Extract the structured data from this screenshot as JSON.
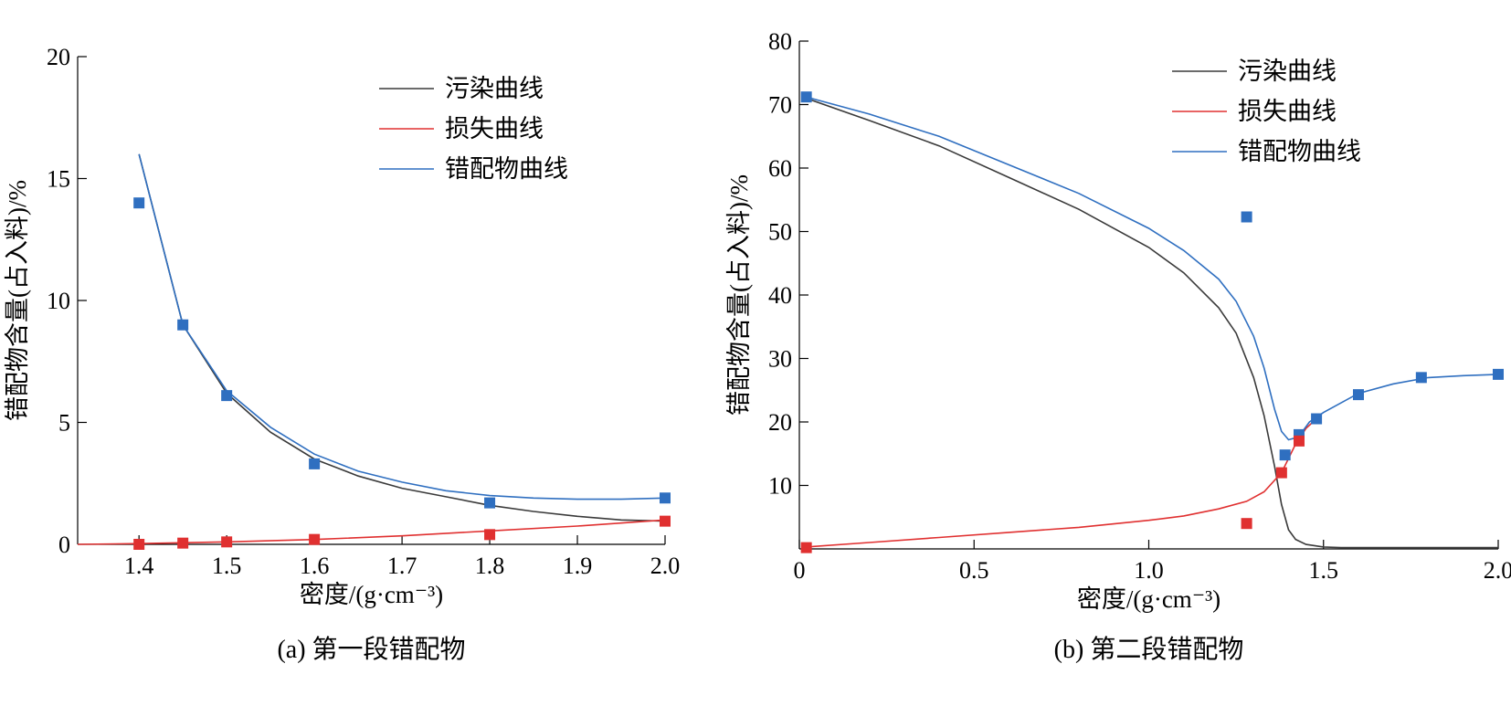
{
  "chart_data": [
    {
      "id": "a",
      "type": "line",
      "caption": "(a) 第一段错配物",
      "xlabel": "密度/(g·cm⁻³)",
      "ylabel": "错配物含量(占入料)/%",
      "xlim": [
        1.33,
        2.0
      ],
      "ylim": [
        0,
        20
      ],
      "x_ticks": [
        1.4,
        1.5,
        1.6,
        1.7,
        1.8,
        1.9,
        2.0
      ],
      "x_tick_labels": [
        "1.4",
        "1.5",
        "1.6",
        "1.7",
        "1.8",
        "1.9",
        "2.0"
      ],
      "y_ticks": [
        0,
        5,
        10,
        15,
        20
      ],
      "y_tick_labels": [
        "0",
        "5",
        "10",
        "15",
        "20"
      ],
      "legend_position": "top-right",
      "series": [
        {
          "name": "污染曲线",
          "color": "#3a3a3a",
          "x": [
            1.4,
            1.45,
            1.5,
            1.55,
            1.6,
            1.65,
            1.7,
            1.75,
            1.8,
            1.85,
            1.9,
            1.95,
            2.0
          ],
          "y": [
            16.0,
            9.0,
            6.2,
            4.6,
            3.5,
            2.8,
            2.3,
            1.95,
            1.6,
            1.35,
            1.15,
            1.0,
            0.95
          ]
        },
        {
          "name": "损失曲线",
          "color": "#e03030",
          "x": [
            1.33,
            1.4,
            1.5,
            1.6,
            1.7,
            1.8,
            1.9,
            2.0
          ],
          "y": [
            0.0,
            0.03,
            0.1,
            0.2,
            0.35,
            0.55,
            0.75,
            1.0
          ]
        },
        {
          "name": "错配物曲线",
          "color": "#2f6fc0",
          "x": [
            1.4,
            1.45,
            1.5,
            1.55,
            1.6,
            1.65,
            1.7,
            1.75,
            1.8,
            1.85,
            1.9,
            1.95,
            2.0
          ],
          "y": [
            16.0,
            9.0,
            6.3,
            4.8,
            3.7,
            3.0,
            2.55,
            2.2,
            2.0,
            1.9,
            1.85,
            1.85,
            1.9
          ]
        }
      ],
      "points": [
        {
          "color": "#2f6fc0",
          "x": [
            1.4,
            1.45,
            1.5,
            1.6,
            1.8,
            2.0
          ],
          "y": [
            14.0,
            9.0,
            6.1,
            3.3,
            1.7,
            1.9
          ]
        },
        {
          "color": "#e03030",
          "x": [
            1.4,
            1.45,
            1.5,
            1.6,
            1.8,
            2.0
          ],
          "y": [
            0.0,
            0.05,
            0.1,
            0.2,
            0.4,
            0.95
          ]
        }
      ]
    },
    {
      "id": "b",
      "type": "line",
      "caption": "(b) 第二段错配物",
      "xlabel": "密度/(g·cm⁻³)",
      "ylabel": "错配物含量(占入料)/%",
      "xlim": [
        0,
        2.0
      ],
      "ylim": [
        0,
        80
      ],
      "x_ticks": [
        0,
        0.5,
        1.0,
        1.5,
        2.0
      ],
      "x_tick_labels": [
        "0",
        "0.5",
        "1.0",
        "1.5",
        "2.0"
      ],
      "y_ticks": [
        10,
        20,
        30,
        40,
        50,
        60,
        70,
        80
      ],
      "y_tick_labels": [
        "10",
        "20",
        "30",
        "40",
        "50",
        "60",
        "70",
        "80"
      ],
      "legend_position": "top-right",
      "series": [
        {
          "name": "污染曲线",
          "color": "#3a3a3a",
          "x": [
            0.02,
            0.2,
            0.4,
            0.6,
            0.8,
            1.0,
            1.1,
            1.2,
            1.25,
            1.3,
            1.33,
            1.36,
            1.38,
            1.4,
            1.42,
            1.45,
            1.5,
            1.55,
            1.7,
            2.0
          ],
          "y": [
            71.0,
            67.5,
            63.5,
            58.5,
            53.5,
            47.5,
            43.5,
            38.0,
            34.0,
            27.0,
            21.0,
            13.0,
            7.0,
            3.0,
            1.5,
            0.7,
            0.3,
            0.2,
            0.2,
            0.2
          ]
        },
        {
          "name": "损失曲线",
          "color": "#e03030",
          "x": [
            0.02,
            0.2,
            0.4,
            0.6,
            0.8,
            1.0,
            1.1,
            1.2,
            1.28,
            1.33,
            1.38,
            1.42,
            1.45,
            1.48
          ],
          "y": [
            0.3,
            1.0,
            1.8,
            2.6,
            3.4,
            4.5,
            5.2,
            6.3,
            7.5,
            9.0,
            12.0,
            16.5,
            19.0,
            20.5
          ]
        },
        {
          "name": "错配物曲线",
          "color": "#2f6fc0",
          "x": [
            0.02,
            0.2,
            0.4,
            0.6,
            0.8,
            1.0,
            1.1,
            1.2,
            1.25,
            1.3,
            1.33,
            1.36,
            1.38,
            1.4,
            1.42,
            1.44,
            1.46,
            1.5,
            1.6,
            1.7,
            1.8,
            1.9,
            2.0
          ],
          "y": [
            71.2,
            68.5,
            65.0,
            60.5,
            56.0,
            50.5,
            47.0,
            42.5,
            39.0,
            33.5,
            28.5,
            22.0,
            18.5,
            17.2,
            17.5,
            18.5,
            20.0,
            21.5,
            24.5,
            26.0,
            27.0,
            27.3,
            27.5
          ]
        }
      ],
      "points": [
        {
          "color": "#2f6fc0",
          "x": [
            0.02,
            1.28,
            1.39,
            1.43,
            1.48,
            1.6,
            1.78,
            2.0
          ],
          "y": [
            71.2,
            52.3,
            14.8,
            18.0,
            20.5,
            24.3,
            27.0,
            27.5
          ]
        },
        {
          "color": "#e03030",
          "x": [
            0.02,
            1.28,
            1.38,
            1.43
          ],
          "y": [
            0.2,
            4.0,
            12.0,
            17.0
          ]
        }
      ]
    }
  ]
}
